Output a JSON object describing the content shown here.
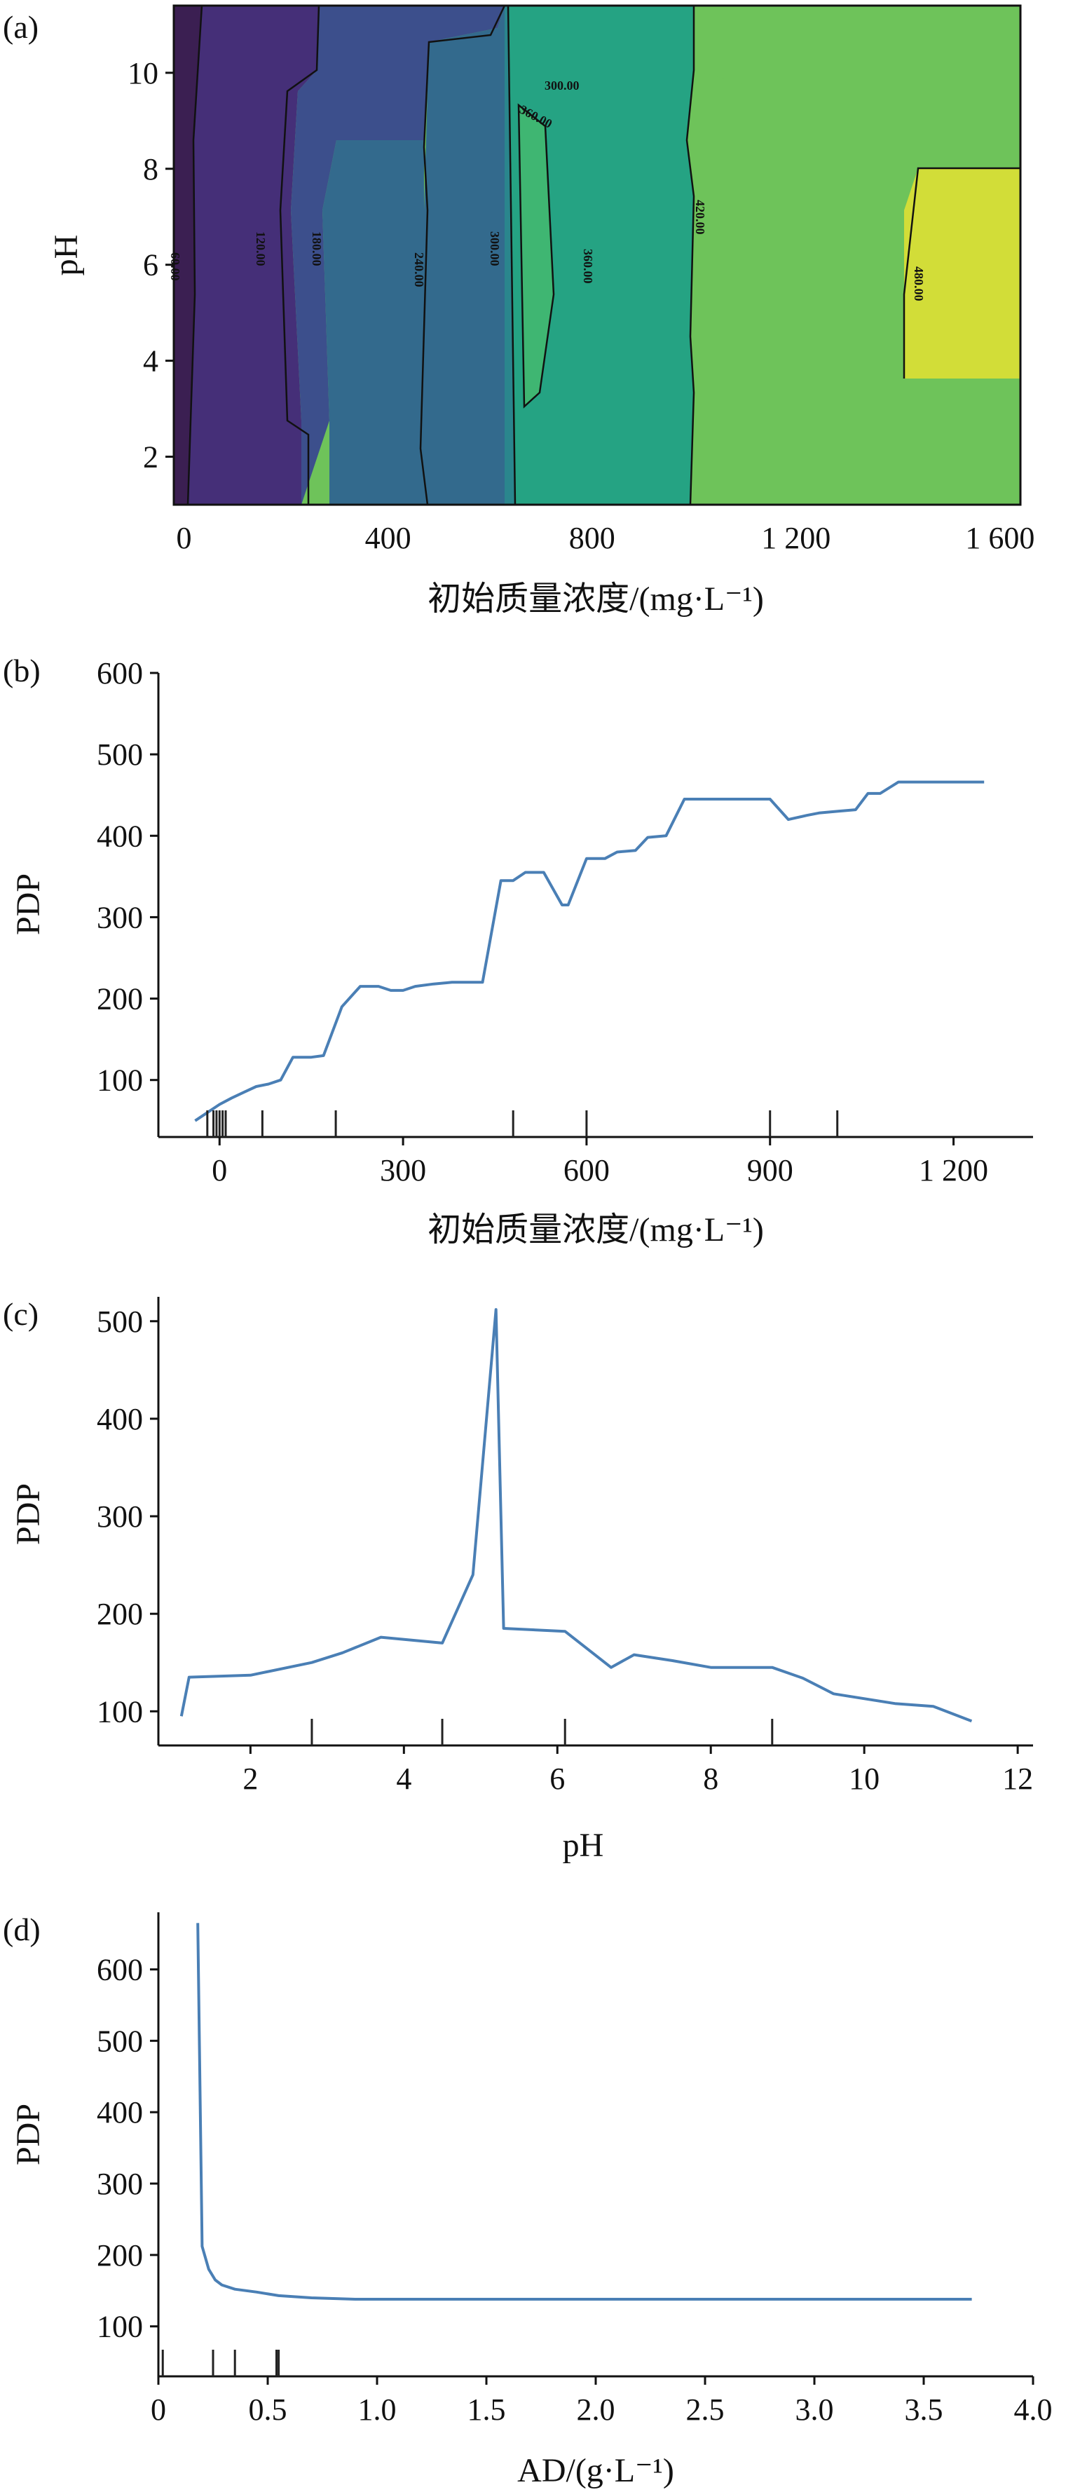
{
  "chart_data": [
    {
      "id": "a",
      "type": "heatmap",
      "panel_label": "(a)",
      "xlabel": "初始质量浓度/(mg·L⁻¹)",
      "ylabel": "pH",
      "x_ticks": [
        "0",
        "400",
        "800",
        "1 200",
        "1 600"
      ],
      "y_ticks": [
        "2",
        "4",
        "6",
        "8",
        "10"
      ],
      "xlim": [
        -20,
        1640
      ],
      "ylim": [
        1,
        11.4
      ],
      "contour_levels": [
        60,
        120,
        180,
        240,
        300,
        360,
        420,
        480
      ],
      "contour_labels": [
        "60.00",
        "120.00",
        "180.00",
        "240.00",
        "300.00",
        "360.00",
        "300.00",
        "360.00",
        "420.00",
        "480.00"
      ],
      "colors": [
        "#3b1f52",
        "#452f78",
        "#3c4f8c",
        "#336a8d",
        "#2a868d",
        "#25a383",
        "#3fb672",
        "#6ec35a",
        "#a6cf44",
        "#d2dd38"
      ],
      "colorbar": "viridis"
    },
    {
      "id": "b",
      "type": "line",
      "panel_label": "(b)",
      "xlabel": "初始质量浓度/(mg·L⁻¹)",
      "ylabel": "PDP",
      "x_ticks": [
        "0",
        "300",
        "600",
        "900",
        "1 200"
      ],
      "y_ticks": [
        "100",
        "200",
        "300",
        "400",
        "500",
        "600"
      ],
      "xlim": [
        -100,
        1330
      ],
      "ylim": [
        30,
        600
      ],
      "x": [
        -40,
        -20,
        0,
        20,
        40,
        60,
        80,
        100,
        120,
        150,
        170,
        200,
        230,
        260,
        280,
        300,
        320,
        350,
        380,
        430,
        460,
        480,
        500,
        530,
        560,
        570,
        600,
        630,
        650,
        680,
        700,
        730,
        760,
        800,
        830,
        870,
        900,
        930,
        960,
        980,
        1010,
        1040,
        1060,
        1080,
        1110,
        1140,
        1170,
        1200,
        1250
      ],
      "y": [
        50,
        60,
        70,
        78,
        85,
        92,
        95,
        100,
        128,
        128,
        130,
        190,
        215,
        215,
        210,
        210,
        215,
        218,
        220,
        220,
        345,
        345,
        355,
        355,
        315,
        315,
        372,
        372,
        380,
        382,
        398,
        400,
        445,
        445,
        445,
        445,
        445,
        420,
        425,
        428,
        430,
        432,
        452,
        452,
        466,
        466,
        466,
        466,
        466
      ],
      "rug": [
        -20,
        -10,
        -5,
        0,
        5,
        10,
        70,
        190,
        480,
        600,
        900,
        1010
      ]
    },
    {
      "id": "c",
      "type": "line",
      "panel_label": "(c)",
      "xlabel": "pH",
      "ylabel": "PDP",
      "x_ticks": [
        "2",
        "4",
        "6",
        "8",
        "10",
        "12"
      ],
      "y_ticks": [
        "100",
        "200",
        "300",
        "400",
        "500"
      ],
      "xlim": [
        0.8,
        12.2
      ],
      "ylim": [
        65,
        525
      ],
      "x": [
        1.1,
        1.2,
        2.0,
        2.8,
        3.2,
        3.7,
        4.5,
        4.9,
        5.2,
        5.3,
        6.1,
        6.7,
        7.0,
        7.5,
        8.0,
        8.8,
        9.2,
        9.6,
        10.4,
        10.9,
        11.4
      ],
      "y": [
        95,
        135,
        137,
        150,
        160,
        176,
        170,
        240,
        512,
        185,
        182,
        145,
        158,
        152,
        145,
        145,
        134,
        118,
        108,
        105,
        90
      ],
      "rug": [
        2.8,
        4.5,
        6.1,
        8.8
      ]
    },
    {
      "id": "d",
      "type": "line",
      "panel_label": "(d)",
      "xlabel": "AD/(g·L⁻¹)",
      "ylabel": "PDP",
      "x_ticks": [
        "0",
        "0.5",
        "1.0",
        "1.5",
        "2.0",
        "2.5",
        "3.0",
        "3.5",
        "4.0"
      ],
      "y_ticks": [
        "100",
        "200",
        "300",
        "400",
        "500",
        "600"
      ],
      "xlim": [
        0,
        4.0
      ],
      "ylim": [
        30,
        680
      ],
      "x": [
        0.18,
        0.2,
        0.23,
        0.26,
        0.29,
        0.35,
        0.45,
        0.55,
        0.7,
        0.9,
        1.2,
        1.5,
        2.0,
        2.5,
        3.0,
        3.5,
        3.72
      ],
      "y": [
        665,
        212,
        180,
        165,
        158,
        152,
        148,
        143,
        140,
        138,
        138,
        138,
        138,
        138,
        138,
        138,
        138
      ],
      "rug": [
        0.02,
        0.25,
        0.35,
        0.54,
        0.55
      ]
    }
  ]
}
